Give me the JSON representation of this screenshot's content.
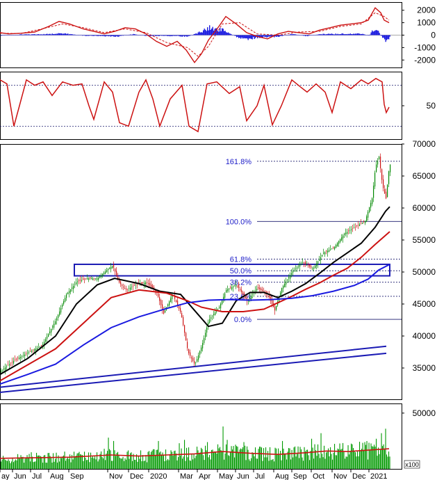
{
  "chart_data": [
    {
      "type": "line",
      "panel": "macd",
      "ylim": [
        -2600,
        2600
      ],
      "ticks": [
        "2000",
        "1000",
        "0",
        "-1000",
        "-2000"
      ],
      "tick_values": [
        2000,
        1000,
        0,
        -1000,
        -2000
      ],
      "colors": {
        "macd": "#cc1111",
        "signal": "#cc1111",
        "hist": "#1a1ae0"
      },
      "macd_points": [
        [
          0,
          200
        ],
        [
          12,
          100
        ],
        [
          30,
          150
        ],
        [
          50,
          250
        ],
        [
          70,
          700
        ],
        [
          85,
          1100
        ],
        [
          100,
          900
        ],
        [
          120,
          500
        ],
        [
          135,
          300
        ],
        [
          150,
          100
        ],
        [
          165,
          300
        ],
        [
          180,
          600
        ],
        [
          195,
          500
        ],
        [
          210,
          100
        ],
        [
          225,
          -500
        ],
        [
          240,
          -900
        ],
        [
          255,
          -500
        ],
        [
          268,
          -1200
        ],
        [
          280,
          -2200
        ],
        [
          290,
          -1500
        ],
        [
          300,
          -400
        ],
        [
          315,
          700
        ],
        [
          325,
          1500
        ],
        [
          340,
          900
        ],
        [
          355,
          200
        ],
        [
          370,
          -100
        ],
        [
          385,
          -300
        ],
        [
          400,
          100
        ],
        [
          415,
          300
        ],
        [
          430,
          200
        ],
        [
          445,
          100
        ],
        [
          460,
          400
        ],
        [
          475,
          600
        ],
        [
          490,
          800
        ],
        [
          505,
          900
        ],
        [
          520,
          1000
        ],
        [
          530,
          1200
        ],
        [
          540,
          2200
        ],
        [
          548,
          1800
        ],
        [
          553,
          1200
        ],
        [
          560,
          1000
        ]
      ],
      "signal_points": [
        [
          0,
          150
        ],
        [
          30,
          130
        ],
        [
          60,
          500
        ],
        [
          90,
          900
        ],
        [
          120,
          600
        ],
        [
          150,
          200
        ],
        [
          180,
          500
        ],
        [
          210,
          200
        ],
        [
          240,
          -600
        ],
        [
          270,
          -1000
        ],
        [
          285,
          -1700
        ],
        [
          300,
          -900
        ],
        [
          320,
          900
        ],
        [
          345,
          1000
        ],
        [
          370,
          100
        ],
        [
          400,
          0
        ],
        [
          430,
          250
        ],
        [
          460,
          300
        ],
        [
          490,
          700
        ],
        [
          520,
          900
        ],
        [
          540,
          1800
        ],
        [
          553,
          1500
        ],
        [
          560,
          1200
        ]
      ],
      "hist_points": [
        [
          0,
          -50
        ],
        [
          30,
          50
        ],
        [
          60,
          60
        ],
        [
          90,
          150
        ],
        [
          120,
          -50
        ],
        [
          150,
          -80
        ],
        [
          170,
          -100
        ],
        [
          190,
          80
        ],
        [
          210,
          -60
        ],
        [
          240,
          -60
        ],
        [
          270,
          -120
        ],
        [
          290,
          300
        ],
        [
          300,
          600
        ],
        [
          320,
          400
        ],
        [
          340,
          -150
        ],
        [
          355,
          -300
        ],
        [
          375,
          -160
        ],
        [
          400,
          -120
        ],
        [
          420,
          100
        ],
        [
          440,
          -80
        ],
        [
          460,
          80
        ],
        [
          490,
          100
        ],
        [
          520,
          120
        ],
        [
          530,
          -60
        ],
        [
          540,
          600
        ],
        [
          550,
          -200
        ],
        [
          555,
          -600
        ],
        [
          560,
          -200
        ]
      ]
    },
    {
      "type": "line",
      "panel": "stochastic",
      "ylim": [
        0,
        100
      ],
      "ticks": [
        "50"
      ],
      "tick_values": [
        50
      ],
      "reference_levels": [
        80,
        20
      ],
      "colors": {
        "line": "#cc1111",
        "reference": "#1a1a6e"
      },
      "points": [
        [
          0,
          88
        ],
        [
          10,
          82
        ],
        [
          20,
          20
        ],
        [
          28,
          50
        ],
        [
          38,
          88
        ],
        [
          50,
          80
        ],
        [
          62,
          85
        ],
        [
          75,
          65
        ],
        [
          90,
          85
        ],
        [
          105,
          80
        ],
        [
          118,
          82
        ],
        [
          128,
          50
        ],
        [
          135,
          30
        ],
        [
          150,
          85
        ],
        [
          162,
          70
        ],
        [
          172,
          25
        ],
        [
          185,
          20
        ],
        [
          200,
          70
        ],
        [
          210,
          88
        ],
        [
          220,
          60
        ],
        [
          230,
          20
        ],
        [
          245,
          60
        ],
        [
          262,
          80
        ],
        [
          272,
          20
        ],
        [
          285,
          12
        ],
        [
          298,
          82
        ],
        [
          312,
          85
        ],
        [
          330,
          68
        ],
        [
          345,
          78
        ],
        [
          355,
          28
        ],
        [
          370,
          50
        ],
        [
          380,
          80
        ],
        [
          392,
          22
        ],
        [
          405,
          50
        ],
        [
          420,
          88
        ],
        [
          432,
          78
        ],
        [
          442,
          70
        ],
        [
          455,
          82
        ],
        [
          468,
          70
        ],
        [
          478,
          40
        ],
        [
          490,
          85
        ],
        [
          505,
          75
        ],
        [
          520,
          88
        ],
        [
          530,
          82
        ],
        [
          541,
          90
        ],
        [
          550,
          85
        ],
        [
          553,
          52
        ],
        [
          556,
          40
        ],
        [
          560,
          48
        ]
      ]
    },
    {
      "type": "candlestick",
      "panel": "price",
      "ylim": [
        30000,
        70000
      ],
      "ticks": [
        "70000",
        "65000",
        "60000",
        "55000",
        "50000",
        "45000",
        "40000",
        "35000"
      ],
      "tick_values": [
        70000,
        65000,
        60000,
        55000,
        50000,
        45000,
        40000,
        35000
      ],
      "x_labels": [
        "ay",
        "Jun",
        "Jul",
        "Aug",
        "Sep",
        "Nov",
        "Dec",
        "2020",
        "Mar",
        "Apr",
        "May",
        "Jun",
        "Jul",
        "Aug",
        "Sep",
        "Oct",
        "Nov",
        "Dec",
        "2021"
      ],
      "x_label_positions": [
        0,
        18,
        44,
        70,
        99,
        155,
        185,
        214,
        257,
        284,
        313,
        339,
        365,
        394,
        420,
        448,
        478,
        505,
        531
      ],
      "fibonacci": [
        {
          "label": "161.8%",
          "value": 67300
        },
        {
          "label": "100.0%",
          "value": 57900
        },
        {
          "label": "61.8%",
          "value": 52000
        },
        {
          "label": "50.0%",
          "value": 50200
        },
        {
          "label": "38.2%",
          "value": 48400
        },
        {
          "label": "23.6%",
          "value": 46200
        },
        {
          "label": "0.0%",
          "value": 42600
        }
      ],
      "resistance_box": {
        "x": [
          107,
          561
        ],
        "y": [
          49400,
          51200
        ]
      },
      "trend_lines": [
        [
          [
            0,
            32000
          ],
          [
            556,
            38400
          ]
        ],
        [
          [
            0,
            31200
          ],
          [
            556,
            37300
          ]
        ]
      ],
      "close_path": [
        [
          0,
          34500
        ],
        [
          20,
          36200
        ],
        [
          40,
          37400
        ],
        [
          60,
          38500
        ],
        [
          80,
          42500
        ],
        [
          95,
          46500
        ],
        [
          110,
          48500
        ],
        [
          125,
          49000
        ],
        [
          140,
          49000
        ],
        [
          155,
          50500
        ],
        [
          162,
          51000
        ],
        [
          170,
          48500
        ],
        [
          180,
          47200
        ],
        [
          195,
          48000
        ],
        [
          210,
          48400
        ],
        [
          225,
          46800
        ],
        [
          235,
          43500
        ],
        [
          248,
          46600
        ],
        [
          260,
          43500
        ],
        [
          270,
          37500
        ],
        [
          280,
          35500
        ],
        [
          290,
          38500
        ],
        [
          300,
          42500
        ],
        [
          315,
          44500
        ],
        [
          325,
          47200
        ],
        [
          340,
          48000
        ],
        [
          355,
          45500
        ],
        [
          370,
          47500
        ],
        [
          385,
          46500
        ],
        [
          395,
          44000
        ],
        [
          405,
          47500
        ],
        [
          420,
          50000
        ],
        [
          435,
          51500
        ],
        [
          450,
          50500
        ],
        [
          465,
          53000
        ],
        [
          480,
          53800
        ],
        [
          495,
          56000
        ],
        [
          510,
          57000
        ],
        [
          525,
          58000
        ],
        [
          535,
          61500
        ],
        [
          540,
          66500
        ],
        [
          545,
          68000
        ],
        [
          550,
          63500
        ],
        [
          555,
          61500
        ],
        [
          560,
          66800
        ]
      ],
      "ma_series": [
        {
          "color": "#000000",
          "points": [
            [
              0,
              34000
            ],
            [
              40,
              36500
            ],
            [
              80,
              40000
            ],
            [
              110,
              45000
            ],
            [
              140,
              48000
            ],
            [
              165,
              49000
            ],
            [
              200,
              48200
            ],
            [
              230,
              47000
            ],
            [
              260,
              46500
            ],
            [
              280,
              44000
            ],
            [
              300,
              41500
            ],
            [
              320,
              42000
            ],
            [
              340,
              45500
            ],
            [
              360,
              46800
            ],
            [
              380,
              46800
            ],
            [
              400,
              46000
            ],
            [
              420,
              47000
            ],
            [
              440,
              48200
            ],
            [
              460,
              49800
            ],
            [
              480,
              51500
            ],
            [
              500,
              53000
            ],
            [
              520,
              54500
            ],
            [
              540,
              57000
            ],
            [
              555,
              59500
            ],
            [
              561,
              60200
            ]
          ]
        },
        {
          "color": "#cc1111",
          "points": [
            [
              0,
              33000
            ],
            [
              40,
              35500
            ],
            [
              80,
              38000
            ],
            [
              120,
              42000
            ],
            [
              160,
              46000
            ],
            [
              200,
              47200
            ],
            [
              240,
              46700
            ],
            [
              270,
              45500
            ],
            [
              290,
              44500
            ],
            [
              320,
              43800
            ],
            [
              350,
              43800
            ],
            [
              380,
              44200
            ],
            [
              400,
              45200
            ],
            [
              420,
              46200
            ],
            [
              440,
              47300
            ],
            [
              460,
              48300
            ],
            [
              480,
              49500
            ],
            [
              500,
              50600
            ],
            [
              520,
              52300
            ],
            [
              540,
              54300
            ],
            [
              561,
              56300
            ]
          ]
        },
        {
          "color": "#1a1ae0",
          "points": [
            [
              0,
              32500
            ],
            [
              40,
              34000
            ],
            [
              80,
              35600
            ],
            [
              120,
              38600
            ],
            [
              160,
              41300
            ],
            [
              200,
              43000
            ],
            [
              240,
              44300
            ],
            [
              270,
              45200
            ],
            [
              300,
              45600
            ],
            [
              330,
              45700
            ],
            [
              360,
              45600
            ],
            [
              390,
              45700
            ],
            [
              420,
              45900
            ],
            [
              450,
              46300
            ],
            [
              480,
              47000
            ],
            [
              510,
              47900
            ],
            [
              530,
              48900
            ],
            [
              545,
              50300
            ],
            [
              561,
              51200
            ]
          ]
        }
      ]
    },
    {
      "type": "bar",
      "panel": "volume",
      "ylim": [
        0,
        58000
      ],
      "ticks": [
        "50000"
      ],
      "tick_values": [
        50000
      ],
      "unit": "x100",
      "colors": {
        "bar": "#009900",
        "ma": "#cc1111"
      },
      "volume_ma": [
        [
          0,
          9500
        ],
        [
          100,
          10500
        ],
        [
          160,
          12500
        ],
        [
          200,
          11500
        ],
        [
          240,
          12500
        ],
        [
          280,
          13500
        ],
        [
          320,
          15500
        ],
        [
          360,
          14000
        ],
        [
          400,
          13000
        ],
        [
          440,
          14500
        ],
        [
          470,
          16000
        ],
        [
          500,
          15500
        ],
        [
          530,
          16800
        ],
        [
          560,
          18000
        ]
      ],
      "spikes": [
        [
          155,
          28000
        ],
        [
          163,
          25000
        ],
        [
          228,
          25000
        ],
        [
          258,
          23000
        ],
        [
          265,
          26000
        ],
        [
          298,
          24000
        ],
        [
          320,
          38000
        ],
        [
          326,
          26000
        ],
        [
          351,
          24000
        ],
        [
          406,
          25000
        ],
        [
          448,
          27000
        ],
        [
          462,
          32000
        ],
        [
          525,
          24000
        ],
        [
          541,
          27000
        ],
        [
          548,
          32000
        ],
        [
          555,
          36000
        ]
      ]
    }
  ]
}
